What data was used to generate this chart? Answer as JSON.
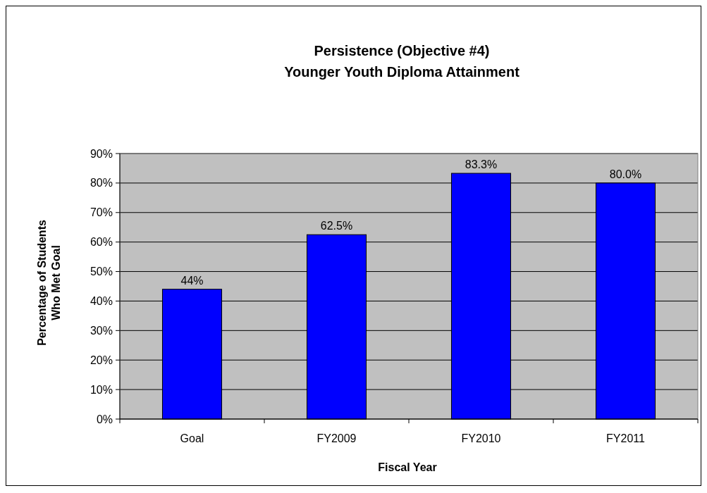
{
  "chart_data": {
    "type": "bar",
    "title": "Persistence (Objective #4)",
    "subtitle": "Younger Youth Diploma Attainment",
    "xlabel": "Fiscal Year",
    "ylabel": "Percentage of Students\nWho Met Goal",
    "categories": [
      "Goal",
      "FY2009",
      "FY2010",
      "FY2011"
    ],
    "values": [
      44,
      62.5,
      83.3,
      80.0
    ],
    "value_labels": [
      "44%",
      "62.5%",
      "83.3%",
      "80.0%"
    ],
    "color": "#0000ff",
    "ylim": [
      0,
      90
    ],
    "yticks": [
      {
        "value": 0,
        "label": "0%"
      },
      {
        "value": 10,
        "label": "10%"
      },
      {
        "value": 20,
        "label": "20%"
      },
      {
        "value": 30,
        "label": "30%"
      },
      {
        "value": 40,
        "label": "40%"
      },
      {
        "value": 50,
        "label": "50%"
      },
      {
        "value": 60,
        "label": "60%"
      },
      {
        "value": 70,
        "label": "70%"
      },
      {
        "value": 80,
        "label": "80%"
      },
      {
        "value": 90,
        "label": "90%"
      }
    ],
    "grid": "y"
  }
}
